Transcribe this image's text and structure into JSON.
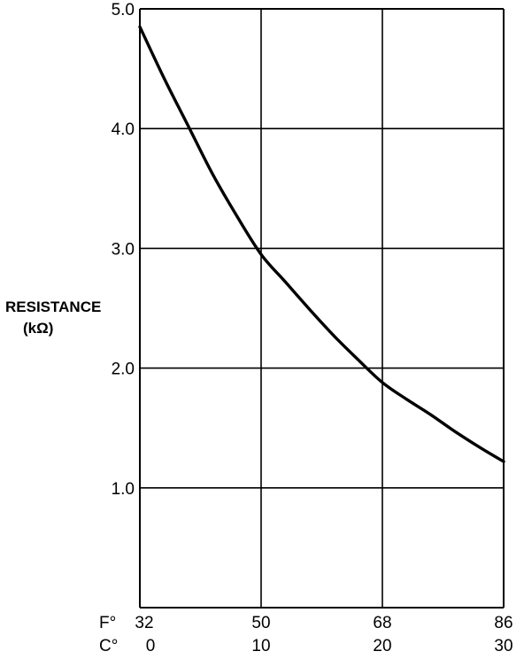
{
  "chart_data": {
    "type": "line",
    "title": "",
    "ylabel": "RESISTANCE",
    "yunit": "(kΩ)",
    "x_scales": [
      {
        "label": "F°",
        "ticks": [
          "32",
          "50",
          "68",
          "86"
        ]
      },
      {
        "label": "C°",
        "ticks": [
          "0",
          "10",
          "20",
          "30"
        ]
      }
    ],
    "xlim": [
      0,
      30
    ],
    "ylim": [
      0,
      5.0
    ],
    "y_ticks": [
      "5.0",
      "4.0",
      "3.0",
      "2.0",
      "1.0"
    ],
    "grid": true,
    "series": [
      {
        "x": [
          0,
          2,
          4,
          6,
          8,
          10,
          12,
          14,
          16,
          18,
          20,
          22,
          24,
          26,
          28,
          30
        ],
        "y": [
          4.85,
          4.42,
          4.02,
          3.62,
          3.27,
          2.95,
          2.72,
          2.49,
          2.27,
          2.07,
          1.88,
          1.74,
          1.61,
          1.47,
          1.34,
          1.22
        ]
      }
    ]
  }
}
